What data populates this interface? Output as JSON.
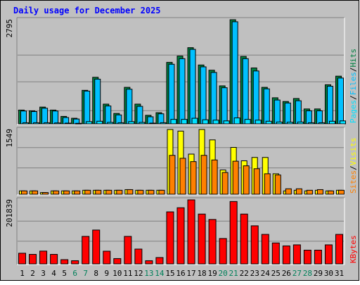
{
  "chart_data": {
    "type": "bar",
    "title": "Daily usage for December 2025",
    "categories": [
      "1",
      "2",
      "3",
      "4",
      "5",
      "6",
      "7",
      "8",
      "9",
      "10",
      "11",
      "12",
      "13",
      "14",
      "15",
      "16",
      "17",
      "18",
      "19",
      "20",
      "21",
      "22",
      "23",
      "24",
      "25",
      "26",
      "27",
      "28",
      "29",
      "30",
      "31"
    ],
    "weekend_days": [
      "6",
      "7",
      "13",
      "14",
      "20",
      "21",
      "27",
      "28"
    ],
    "panels": [
      {
        "name": "hits-files-pages",
        "max_label": "2795",
        "ylim": [
          0,
          2795
        ],
        "series": [
          {
            "name": "Hits",
            "color": "#008040",
            "values": [
              370,
              350,
              450,
              370,
              200,
              150,
              900,
              1250,
              530,
              280,
              980,
              530,
              230,
              300,
              1650,
              1820,
              2045,
              1580,
              1440,
              1020,
              2795,
              1810,
              1500,
              980,
              700,
              600,
              680,
              400,
              400,
              1050,
              1280
            ]
          },
          {
            "name": "Files",
            "color": "#00C0FF",
            "values": [
              345,
              330,
              420,
              345,
              170,
              130,
              880,
              1200,
              480,
              240,
              930,
              470,
              190,
              270,
              1600,
              1750,
              2000,
              1530,
              1380,
              970,
              2740,
              1750,
              1420,
              940,
              640,
              560,
              620,
              350,
              350,
              1010,
              1230
            ]
          },
          {
            "name": "Pages",
            "color": "#00E0FF",
            "values": [
              30,
              30,
              30,
              25,
              20,
              15,
              60,
              70,
              40,
              30,
              60,
              40,
              20,
              30,
              120,
              120,
              150,
              110,
              100,
              80,
              160,
              120,
              100,
              70,
              50,
              45,
              50,
              30,
              30,
              70,
              80
            ]
          }
        ],
        "axis_right": [
          {
            "text": "Pages",
            "color": "#00E0FF"
          },
          {
            "text": "/",
            "color": "#000000"
          },
          {
            "text": "Files",
            "color": "#00C0FF"
          },
          {
            "text": "/",
            "color": "#000000"
          },
          {
            "text": "Hits",
            "color": "#008040"
          }
        ]
      },
      {
        "name": "visits-sites",
        "max_label": "1549",
        "ylim": [
          0,
          1549
        ],
        "series": [
          {
            "name": "Visits",
            "color": "#FFFF00",
            "values": [
              80,
              80,
              40,
              80,
              80,
              80,
              95,
              95,
              95,
              95,
              110,
              95,
              95,
              95,
              1549,
              1510,
              960,
              1549,
              1300,
              580,
              1120,
              800,
              880,
              880,
              490,
              80,
              95,
              80,
              95,
              80,
              95
            ]
          },
          {
            "name": "Sites",
            "color": "#FF8000",
            "values": [
              80,
              80,
              40,
              80,
              80,
              80,
              95,
              95,
              95,
              95,
              110,
              95,
              95,
              95,
              930,
              860,
              780,
              930,
              820,
              520,
              790,
              680,
              610,
              490,
              460,
              130,
              130,
              95,
              110,
              80,
              95
            ]
          }
        ],
        "axis_right": [
          {
            "text": "Sites",
            "color": "#FF8000"
          },
          {
            "text": "/",
            "color": "#000000"
          },
          {
            "text": "Visits",
            "color": "#FFFF00"
          }
        ]
      },
      {
        "name": "kbytes",
        "max_label": "201839",
        "ylim": [
          0,
          201839
        ],
        "series": [
          {
            "name": "KBytes",
            "color": "#FF0000",
            "values": [
              33600,
              30000,
              40300,
              30000,
              13400,
              10000,
              86700,
              106700,
              40000,
              16700,
              86700,
              46700,
              10000,
              20000,
              164000,
              177000,
              201839,
              157000,
              140000,
              80000,
              196600,
              157000,
              120000,
              93000,
              66000,
              56700,
              60000,
              43300,
              43300,
              60000,
              93000
            ]
          }
        ],
        "axis_right": [
          {
            "text": "KBytes",
            "color": "#FF0000"
          }
        ]
      }
    ]
  }
}
